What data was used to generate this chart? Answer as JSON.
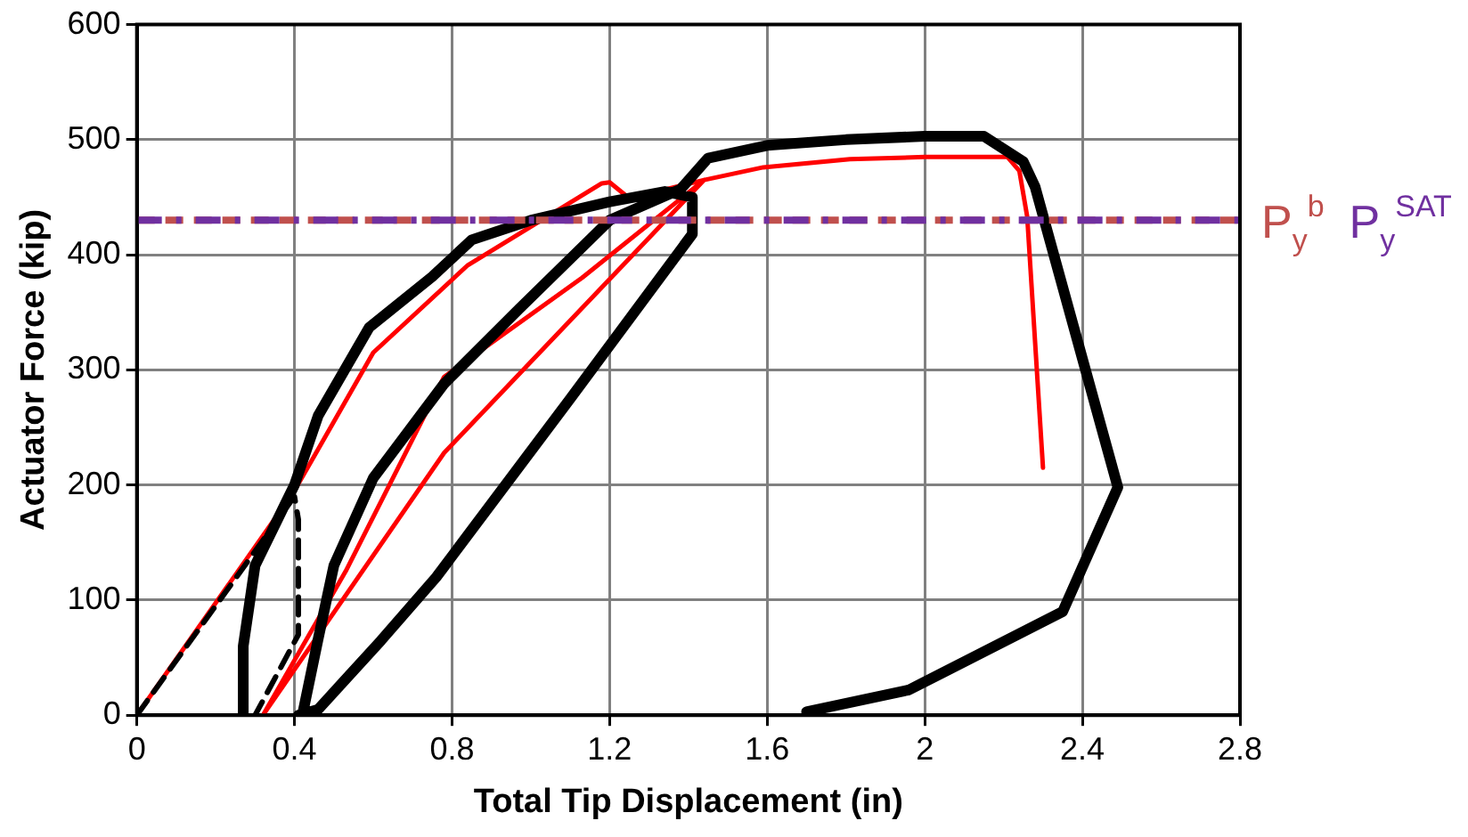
{
  "chart_data": {
    "type": "line",
    "xlabel": "Total Tip Displacement (in)",
    "ylabel": "Actuator Force (kip)",
    "xlim": [
      0,
      2.8
    ],
    "xticks": [
      0,
      0.4,
      0.8,
      1.2,
      1.6,
      2,
      2.4,
      2.8
    ],
    "ylim": [
      0,
      600
    ],
    "yticks": [
      0,
      100,
      200,
      300,
      400,
      500,
      600
    ],
    "grid": true,
    "legend": false,
    "marker": "none",
    "series": [
      {
        "color": "#000000",
        "line_style": "dashed",
        "x": [
          0,
          0.4,
          0.41,
          0.41,
          0.3
        ],
        "values": [
          0,
          190,
          170,
          70,
          0
        ]
      },
      {
        "color": "#000000",
        "line_style": "solid",
        "x": [
          0.27,
          0.27,
          0.3,
          0.4,
          0.46,
          0.59,
          0.75,
          0.85,
          1.0,
          1.2,
          1.34,
          1.41,
          1.41,
          1.1,
          0.76,
          0.62,
          0.46,
          0.41,
          0.42,
          0.46,
          0.5,
          0.6,
          0.78,
          0.97,
          1.2,
          1.38,
          1.45,
          1.6,
          1.8,
          2.0,
          2.15,
          2.25,
          2.28,
          2.49,
          2.35,
          1.96,
          1.7
        ],
        "values": [
          0,
          60,
          130,
          200,
          260,
          337,
          381,
          413,
          430,
          446,
          455,
          450,
          418,
          275,
          120,
          65,
          5,
          0,
          0,
          66,
          130,
          206,
          288,
          353,
          430,
          457,
          484,
          495,
          500,
          503,
          503,
          481,
          459,
          198,
          90,
          22,
          3
        ]
      },
      {
        "color": "#ff0000",
        "line_style": "solid",
        "x": [
          0,
          0.4,
          0.6,
          0.84,
          1.18,
          1.2,
          1.25,
          1.44,
          0.78,
          0.32,
          0.53,
          0.78,
          1.13,
          1.44,
          1.59,
          1.81,
          2.0,
          2.21,
          2.24,
          2.26,
          2.3
        ],
        "values": [
          0,
          195,
          315,
          391,
          462,
          463,
          449,
          465,
          228,
          0,
          125,
          294,
          380,
          465,
          476,
          483,
          485,
          485,
          473,
          433,
          215
        ]
      }
    ],
    "ref_lines": [
      {
        "axis": "y",
        "value": 430,
        "label": "P$_{y}$$^{b}$",
        "color": "#c0504d",
        "line_style": "dashed"
      },
      {
        "axis": "y",
        "value": 430,
        "label": "P$_{y}$$^{SAT}$",
        "color": "#7030a0",
        "line_style": "dashed"
      }
    ]
  }
}
